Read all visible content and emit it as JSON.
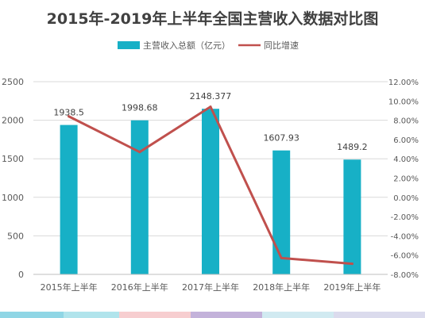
{
  "chart_data": {
    "type": "bar",
    "title": "2015年-2019年上半年全国主营收入数据对比图",
    "categories": [
      "2015年上半年",
      "2016年上半年",
      "2017年上半年",
      "2018年上半年",
      "2019年上半年"
    ],
    "series": [
      {
        "name": "主营收入总额（亿元）",
        "type": "bar",
        "axis": "left",
        "color": "#17b0c6",
        "values": [
          1938.5,
          1998.68,
          2148.377,
          1607.93,
          1489.2
        ],
        "labels": [
          "1938.5",
          "1998.68",
          "2148.377",
          "1607.93",
          "1489.2"
        ]
      },
      {
        "name": "同比增速",
        "type": "line",
        "axis": "right",
        "color": "#c0504d",
        "values": [
          8.4,
          4.7,
          9.4,
          -6.3,
          -6.9
        ]
      }
    ],
    "y_left": {
      "min": 0,
      "max": 2500,
      "ticks": [
        0,
        500,
        1000,
        1500,
        2000,
        2500
      ],
      "tick_labels": [
        "0",
        "500",
        "1000",
        "1500",
        "2000",
        "2500"
      ]
    },
    "y_right": {
      "min": -8,
      "max": 12,
      "ticks": [
        -8,
        -6,
        -4,
        -2,
        0,
        2,
        4,
        6,
        8,
        10,
        12
      ],
      "tick_labels": [
        "-8.00%",
        "-6.00%",
        "-4.00%",
        "-2.00%",
        "0.00%",
        "2.00%",
        "4.00%",
        "6.00%",
        "8.00%",
        "10.00%",
        "12.00%"
      ]
    },
    "grid": true,
    "legend": "top-center"
  }
}
